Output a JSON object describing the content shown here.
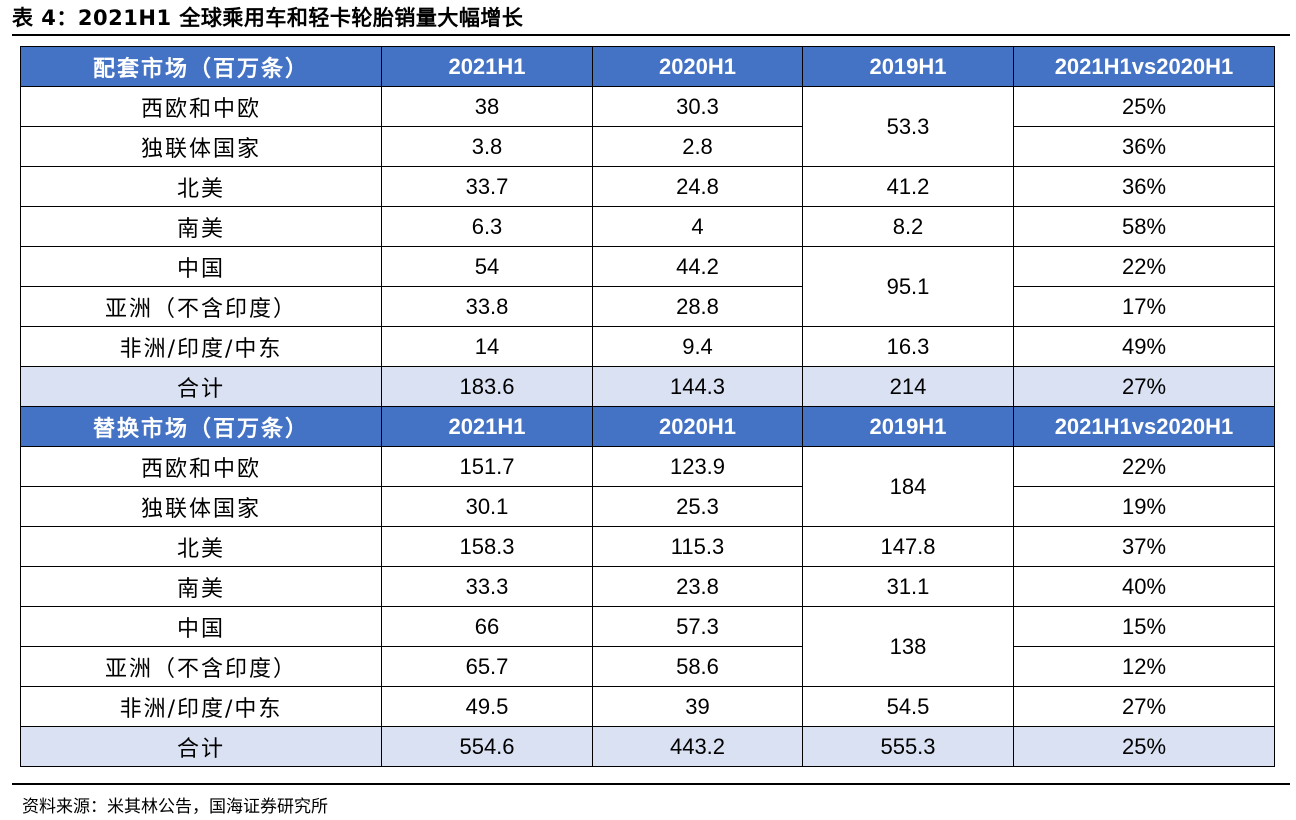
{
  "title": "表 4：2021H1 全球乘用车和轻卡轮胎销量大幅增长",
  "source": "资料来源：米其林公告，国海证券研究所",
  "colors": {
    "header_bg": "#4472c4",
    "header_text": "#ffffff",
    "total_bg": "#d9e1f2"
  },
  "columns": [
    "2021H1",
    "2020H1",
    "2019H1",
    "2021H1vs2020H1"
  ],
  "oe": {
    "header": "配套市场（百万条）",
    "rows": [
      {
        "region": "西欧和中欧",
        "y2021": "38",
        "y2020": "30.3",
        "y2019": "53.3",
        "yoy": "25%"
      },
      {
        "region": "独联体国家",
        "y2021": "3.8",
        "y2020": "2.8",
        "yoy": "36%"
      },
      {
        "region": "北美",
        "y2021": "33.7",
        "y2020": "24.8",
        "y2019": "41.2",
        "yoy": "36%"
      },
      {
        "region": "南美",
        "y2021": "6.3",
        "y2020": "4",
        "y2019": "8.2",
        "yoy": "58%"
      },
      {
        "region": "中国",
        "y2021": "54",
        "y2020": "44.2",
        "y2019": "95.1",
        "yoy": "22%"
      },
      {
        "region": "亚洲（不含印度）",
        "y2021": "33.8",
        "y2020": "28.8",
        "yoy": "17%"
      },
      {
        "region": "非洲/印度/中东",
        "y2021": "14",
        "y2020": "9.4",
        "y2019": "16.3",
        "yoy": "49%"
      },
      {
        "region": "合计",
        "y2021": "183.6",
        "y2020": "144.3",
        "y2019": "214",
        "yoy": "27%"
      }
    ]
  },
  "rt": {
    "header": "替换市场（百万条）",
    "rows": [
      {
        "region": "西欧和中欧",
        "y2021": "151.7",
        "y2020": "123.9",
        "y2019": "184",
        "yoy": "22%"
      },
      {
        "region": "独联体国家",
        "y2021": "30.1",
        "y2020": "25.3",
        "yoy": "19%"
      },
      {
        "region": "北美",
        "y2021": "158.3",
        "y2020": "115.3",
        "y2019": "147.8",
        "yoy": "37%"
      },
      {
        "region": "南美",
        "y2021": "33.3",
        "y2020": "23.8",
        "y2019": "31.1",
        "yoy": "40%"
      },
      {
        "region": "中国",
        "y2021": "66",
        "y2020": "57.3",
        "y2019": "138",
        "yoy": "15%"
      },
      {
        "region": "亚洲（不含印度）",
        "y2021": "65.7",
        "y2020": "58.6",
        "yoy": "12%"
      },
      {
        "region": "非洲/印度/中东",
        "y2021": "49.5",
        "y2020": "39",
        "y2019": "54.5",
        "yoy": "27%"
      },
      {
        "region": "合计",
        "y2021": "554.6",
        "y2020": "443.2",
        "y2019": "555.3",
        "yoy": "25%"
      }
    ]
  }
}
